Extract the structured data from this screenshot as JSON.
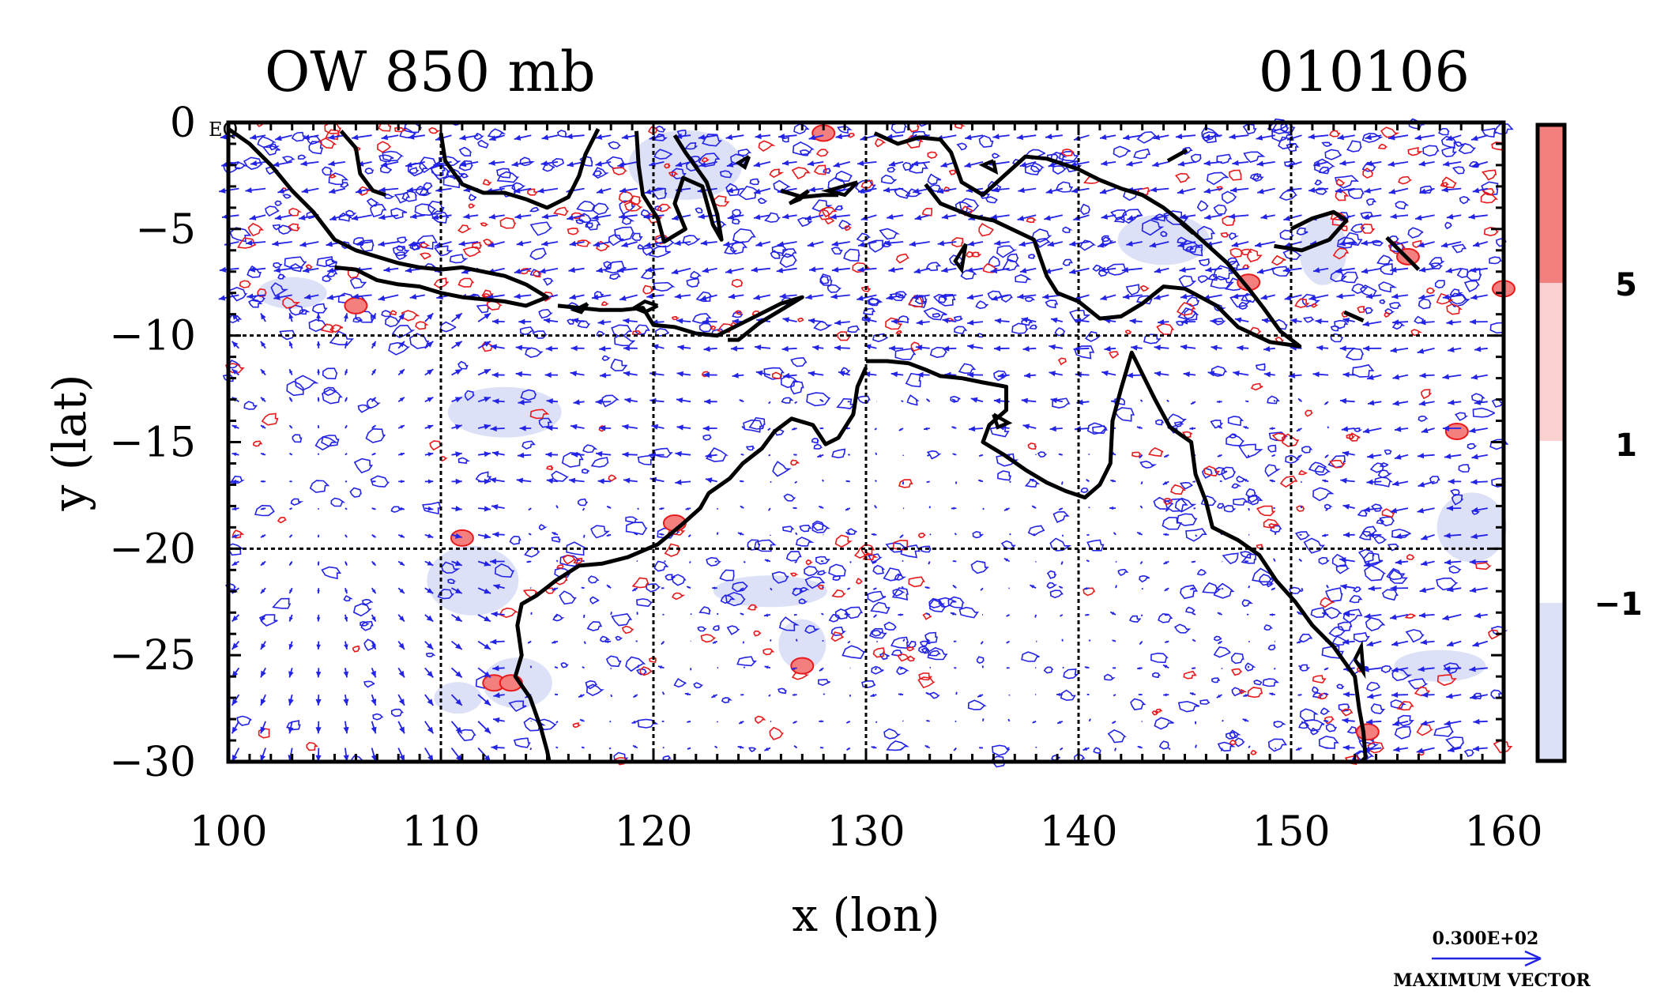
{
  "title_left": "OW 850 mb",
  "title_right": "010106",
  "xlabel": "x (lon)",
  "ylabel": "y (lat)",
  "corner_tag": "EQ",
  "x_ticks": [
    "100",
    "110",
    "120",
    "130",
    "140",
    "150",
    "160"
  ],
  "y_ticks": [
    "0",
    "−5",
    "−10",
    "−15",
    "−20",
    "−25",
    "−30"
  ],
  "colorbar": {
    "labels": [
      "5",
      "1",
      "−1"
    ],
    "colors": [
      "#f47f7f",
      "#fbd0d0",
      "#ffffff",
      "#dde1f7"
    ]
  },
  "max_vector": {
    "value_label": "0.300E+02",
    "caption": "MAXIMUM VECTOR"
  },
  "colors": {
    "vector": "#2323e6",
    "positive_contour": "#e8191b",
    "negative_contour": "#2323e6",
    "negative_fill": "#dde1f7",
    "coast": "#000000"
  },
  "map_data": {
    "projection": "equirectangular",
    "lon_range": [
      100,
      160
    ],
    "lat_range": [
      -30,
      0
    ],
    "gridlines_lon": [
      110,
      120,
      130,
      140,
      150
    ],
    "gridlines_lat": [
      -10,
      -20
    ],
    "coastlines": [
      [
        [
          100,
          -0.3
        ],
        [
          101,
          -1
        ],
        [
          102,
          -2
        ],
        [
          103,
          -3.2
        ],
        [
          104,
          -4.2
        ],
        [
          105,
          -5.5
        ],
        [
          106,
          -6
        ],
        [
          107,
          -6.3
        ],
        [
          108,
          -6.6
        ],
        [
          109,
          -6.8
        ],
        [
          110,
          -6.9
        ],
        [
          111,
          -6.8
        ],
        [
          112,
          -7
        ],
        [
          113,
          -7.2
        ],
        [
          114,
          -7.6
        ],
        [
          115,
          -8.2
        ],
        [
          114,
          -8.6
        ],
        [
          113,
          -8.4
        ],
        [
          112,
          -8.3
        ],
        [
          111,
          -8.2
        ],
        [
          110,
          -8
        ],
        [
          109,
          -7.7
        ],
        [
          108,
          -7.6
        ],
        [
          107,
          -7.4
        ],
        [
          106,
          -6.9
        ],
        [
          105,
          -6.8
        ]
      ],
      [
        [
          115.5,
          -8.6
        ],
        [
          116.5,
          -8.7
        ],
        [
          117.5,
          -8.8
        ],
        [
          118.5,
          -8.8
        ],
        [
          119.5,
          -8.7
        ],
        [
          120,
          -9.5
        ],
        [
          121,
          -9.6
        ],
        [
          122,
          -9.9
        ],
        [
          123,
          -10
        ],
        [
          124,
          -9.5
        ],
        [
          125,
          -9
        ],
        [
          126,
          -8.5
        ],
        [
          127,
          -8.2
        ],
        [
          126,
          -8.8
        ],
        [
          125,
          -9.4
        ],
        [
          124,
          -10.2
        ],
        [
          123.5,
          -10.2
        ]
      ],
      [
        [
          105.3,
          -0.4
        ],
        [
          106,
          -1.2
        ],
        [
          106.2,
          -2.4
        ],
        [
          106.8,
          -3.2
        ],
        [
          107.4,
          -3.4
        ]
      ],
      [
        [
          110,
          -0.5
        ],
        [
          110.2,
          -1.8
        ],
        [
          111,
          -2.9
        ],
        [
          112,
          -3.3
        ],
        [
          113,
          -3.3
        ],
        [
          114,
          -3.6
        ],
        [
          115,
          -4
        ],
        [
          116,
          -3.5
        ],
        [
          116.5,
          -2.5
        ],
        [
          116.8,
          -1.5
        ],
        [
          117.4,
          -0.3
        ]
      ],
      [
        [
          119.2,
          -0.4
        ],
        [
          119.3,
          -2
        ],
        [
          119.5,
          -3.4
        ],
        [
          120.2,
          -4.5
        ],
        [
          120.5,
          -5.6
        ],
        [
          121.5,
          -5
        ],
        [
          121,
          -3.8
        ],
        [
          121.4,
          -2.6
        ],
        [
          122.3,
          -3
        ],
        [
          122.8,
          -4.8
        ],
        [
          123.2,
          -5.5
        ],
        [
          123,
          -4.3
        ],
        [
          122.5,
          -2.8
        ],
        [
          121.5,
          -1.4
        ],
        [
          121,
          -0.6
        ]
      ],
      [
        [
          126,
          -3.2
        ],
        [
          127,
          -3.5
        ],
        [
          128,
          -3.4
        ],
        [
          128.7,
          -3.4
        ]
      ],
      [
        [
          130.4,
          -0.5
        ],
        [
          131.5,
          -1
        ],
        [
          132.5,
          -0.7
        ],
        [
          133.5,
          -0.8
        ],
        [
          134,
          -1.4
        ],
        [
          134.5,
          -2.8
        ],
        [
          135.5,
          -3.4
        ],
        [
          136.5,
          -2.5
        ],
        [
          137.5,
          -1.6
        ],
        [
          138.5,
          -1.7
        ],
        [
          140,
          -2.2
        ],
        [
          141,
          -2.7
        ],
        [
          142,
          -3.1
        ],
        [
          143,
          -3.4
        ],
        [
          144,
          -4
        ],
        [
          145,
          -4.8
        ],
        [
          146,
          -5.7
        ],
        [
          147,
          -6.6
        ],
        [
          148,
          -7.8
        ],
        [
          148.7,
          -8.7
        ],
        [
          149.5,
          -9.8
        ],
        [
          150.4,
          -10.5
        ],
        [
          149,
          -10.3
        ],
        [
          147.5,
          -9.6
        ],
        [
          146.5,
          -8.6
        ],
        [
          145,
          -7.8
        ],
        [
          144,
          -7.7
        ],
        [
          143,
          -8.5
        ],
        [
          142,
          -9.1
        ],
        [
          141,
          -9.2
        ],
        [
          140,
          -8.4
        ],
        [
          139,
          -8
        ],
        [
          138.5,
          -7.2
        ],
        [
          137.9,
          -5.5
        ],
        [
          136,
          -4.6
        ],
        [
          135,
          -4.4
        ],
        [
          134,
          -4
        ],
        [
          133.5,
          -3.8
        ],
        [
          132.8,
          -2.9
        ]
      ],
      [
        [
          150,
          -5
        ],
        [
          151,
          -4.5
        ],
        [
          152,
          -4.2
        ],
        [
          152.6,
          -4.6
        ],
        [
          151.8,
          -5.5
        ],
        [
          150.5,
          -6
        ],
        [
          149.2,
          -5.8
        ]
      ],
      [
        [
          154.5,
          -5.4
        ],
        [
          155.5,
          -6.4
        ],
        [
          156,
          -6.9
        ]
      ],
      [
        [
          130,
          -11.2
        ],
        [
          131,
          -11.2
        ],
        [
          132,
          -11.3
        ],
        [
          132.8,
          -11.6
        ],
        [
          133.5,
          -11.9
        ],
        [
          134.5,
          -12
        ],
        [
          135.5,
          -12.2
        ],
        [
          136.6,
          -12.4
        ],
        [
          136.6,
          -13.5
        ],
        [
          135.8,
          -14.2
        ],
        [
          135.5,
          -15
        ],
        [
          136.5,
          -15.6
        ],
        [
          137.5,
          -16.3
        ],
        [
          138.5,
          -16.9
        ],
        [
          139.4,
          -17.3
        ],
        [
          140.3,
          -17.6
        ],
        [
          141,
          -17
        ],
        [
          141.5,
          -16
        ],
        [
          141.6,
          -14
        ],
        [
          142,
          -12.5
        ],
        [
          142.5,
          -10.8
        ],
        [
          143,
          -11.8
        ],
        [
          143.6,
          -13
        ],
        [
          144.3,
          -14.3
        ],
        [
          145.3,
          -15
        ],
        [
          145.5,
          -16.5
        ],
        [
          146,
          -17.8
        ],
        [
          146.3,
          -19
        ],
        [
          147.5,
          -19.6
        ],
        [
          148.5,
          -20.3
        ],
        [
          149.3,
          -21.5
        ],
        [
          150.2,
          -22.5
        ],
        [
          151,
          -23.6
        ],
        [
          152,
          -24.6
        ],
        [
          153,
          -26
        ],
        [
          153.2,
          -27.5
        ],
        [
          153.4,
          -28.6
        ],
        [
          153.5,
          -29.8
        ],
        [
          153.3,
          -30
        ]
      ],
      [
        [
          130,
          -11.5
        ],
        [
          129.6,
          -12.4
        ],
        [
          129.4,
          -13.7
        ],
        [
          128.7,
          -14.8
        ],
        [
          128.1,
          -15.1
        ],
        [
          127.5,
          -14.2
        ],
        [
          126.5,
          -13.9
        ],
        [
          125.7,
          -14.5
        ],
        [
          125.1,
          -15.3
        ],
        [
          124.2,
          -16
        ],
        [
          123.6,
          -16.7
        ],
        [
          122.6,
          -17.4
        ],
        [
          122.2,
          -18.1
        ],
        [
          121.3,
          -18.9
        ],
        [
          120.2,
          -19.8
        ],
        [
          118.8,
          -20.4
        ],
        [
          117.6,
          -20.7
        ],
        [
          116.5,
          -20.8
        ],
        [
          115.4,
          -21.5
        ],
        [
          114.5,
          -22.2
        ],
        [
          113.8,
          -22.6
        ],
        [
          113.6,
          -23.6
        ],
        [
          113.8,
          -25
        ],
        [
          113.5,
          -26
        ],
        [
          114.2,
          -27
        ],
        [
          114.7,
          -28.4
        ],
        [
          115,
          -29.5
        ],
        [
          115.1,
          -30
        ]
      ],
      [
        [
          144.2,
          -1.8
        ],
        [
          145.1,
          -1.3
        ]
      ],
      [
        [
          144.8,
          -4.7
        ],
        [
          145.4,
          -5.2
        ]
      ],
      [
        [
          152.5,
          -8.9
        ],
        [
          153.4,
          -9.3
        ]
      ]
    ],
    "islands": [
      [
        [
          120.2,
          -8.6
        ],
        [
          119.6,
          -8.9
        ],
        [
          119.1,
          -8.7
        ],
        [
          119.6,
          -8.4
        ],
        [
          120.2,
          -8.6
        ]
      ],
      [
        [
          127.3,
          -3.2
        ],
        [
          126.4,
          -3.8
        ],
        [
          126.9,
          -3.6
        ],
        [
          127.3,
          -3.2
        ]
      ],
      [
        [
          129.6,
          -2.8
        ],
        [
          128.2,
          -3.2
        ],
        [
          129,
          -3.4
        ],
        [
          129.6,
          -2.8
        ]
      ],
      [
        [
          134.7,
          -5.7
        ],
        [
          134.2,
          -6.5
        ],
        [
          134.5,
          -6.9
        ],
        [
          134.7,
          -5.7
        ]
      ],
      [
        [
          136,
          -1.8
        ],
        [
          135.5,
          -2
        ],
        [
          136.1,
          -2.3
        ],
        [
          136,
          -1.8
        ]
      ],
      [
        [
          124.5,
          -1.6
        ],
        [
          124,
          -1.9
        ],
        [
          124.3,
          -2.1
        ],
        [
          124.5,
          -1.6
        ]
      ],
      [
        [
          116.9,
          -8.5
        ],
        [
          116.3,
          -8.8
        ],
        [
          116.6,
          -8.9
        ],
        [
          116.9,
          -8.5
        ]
      ],
      [
        [
          136,
          -13.7
        ],
        [
          136.7,
          -14.1
        ],
        [
          136.2,
          -14.3
        ],
        [
          136,
          -13.7
        ]
      ],
      [
        [
          153,
          -25.2
        ],
        [
          153.3,
          -24.6
        ],
        [
          153.4,
          -25.8
        ],
        [
          153,
          -25.2
        ]
      ]
    ],
    "wind_vectors": "850 mb wind field on a regular lon/lat grid; ~0–30 m/s; reference vector = maximum 30",
    "ow_contours": "Okubo–Weiss parameter; shaded intervals: ≥5 red, 1–5 pink, −1–1 white, ≤−1 light blue"
  }
}
